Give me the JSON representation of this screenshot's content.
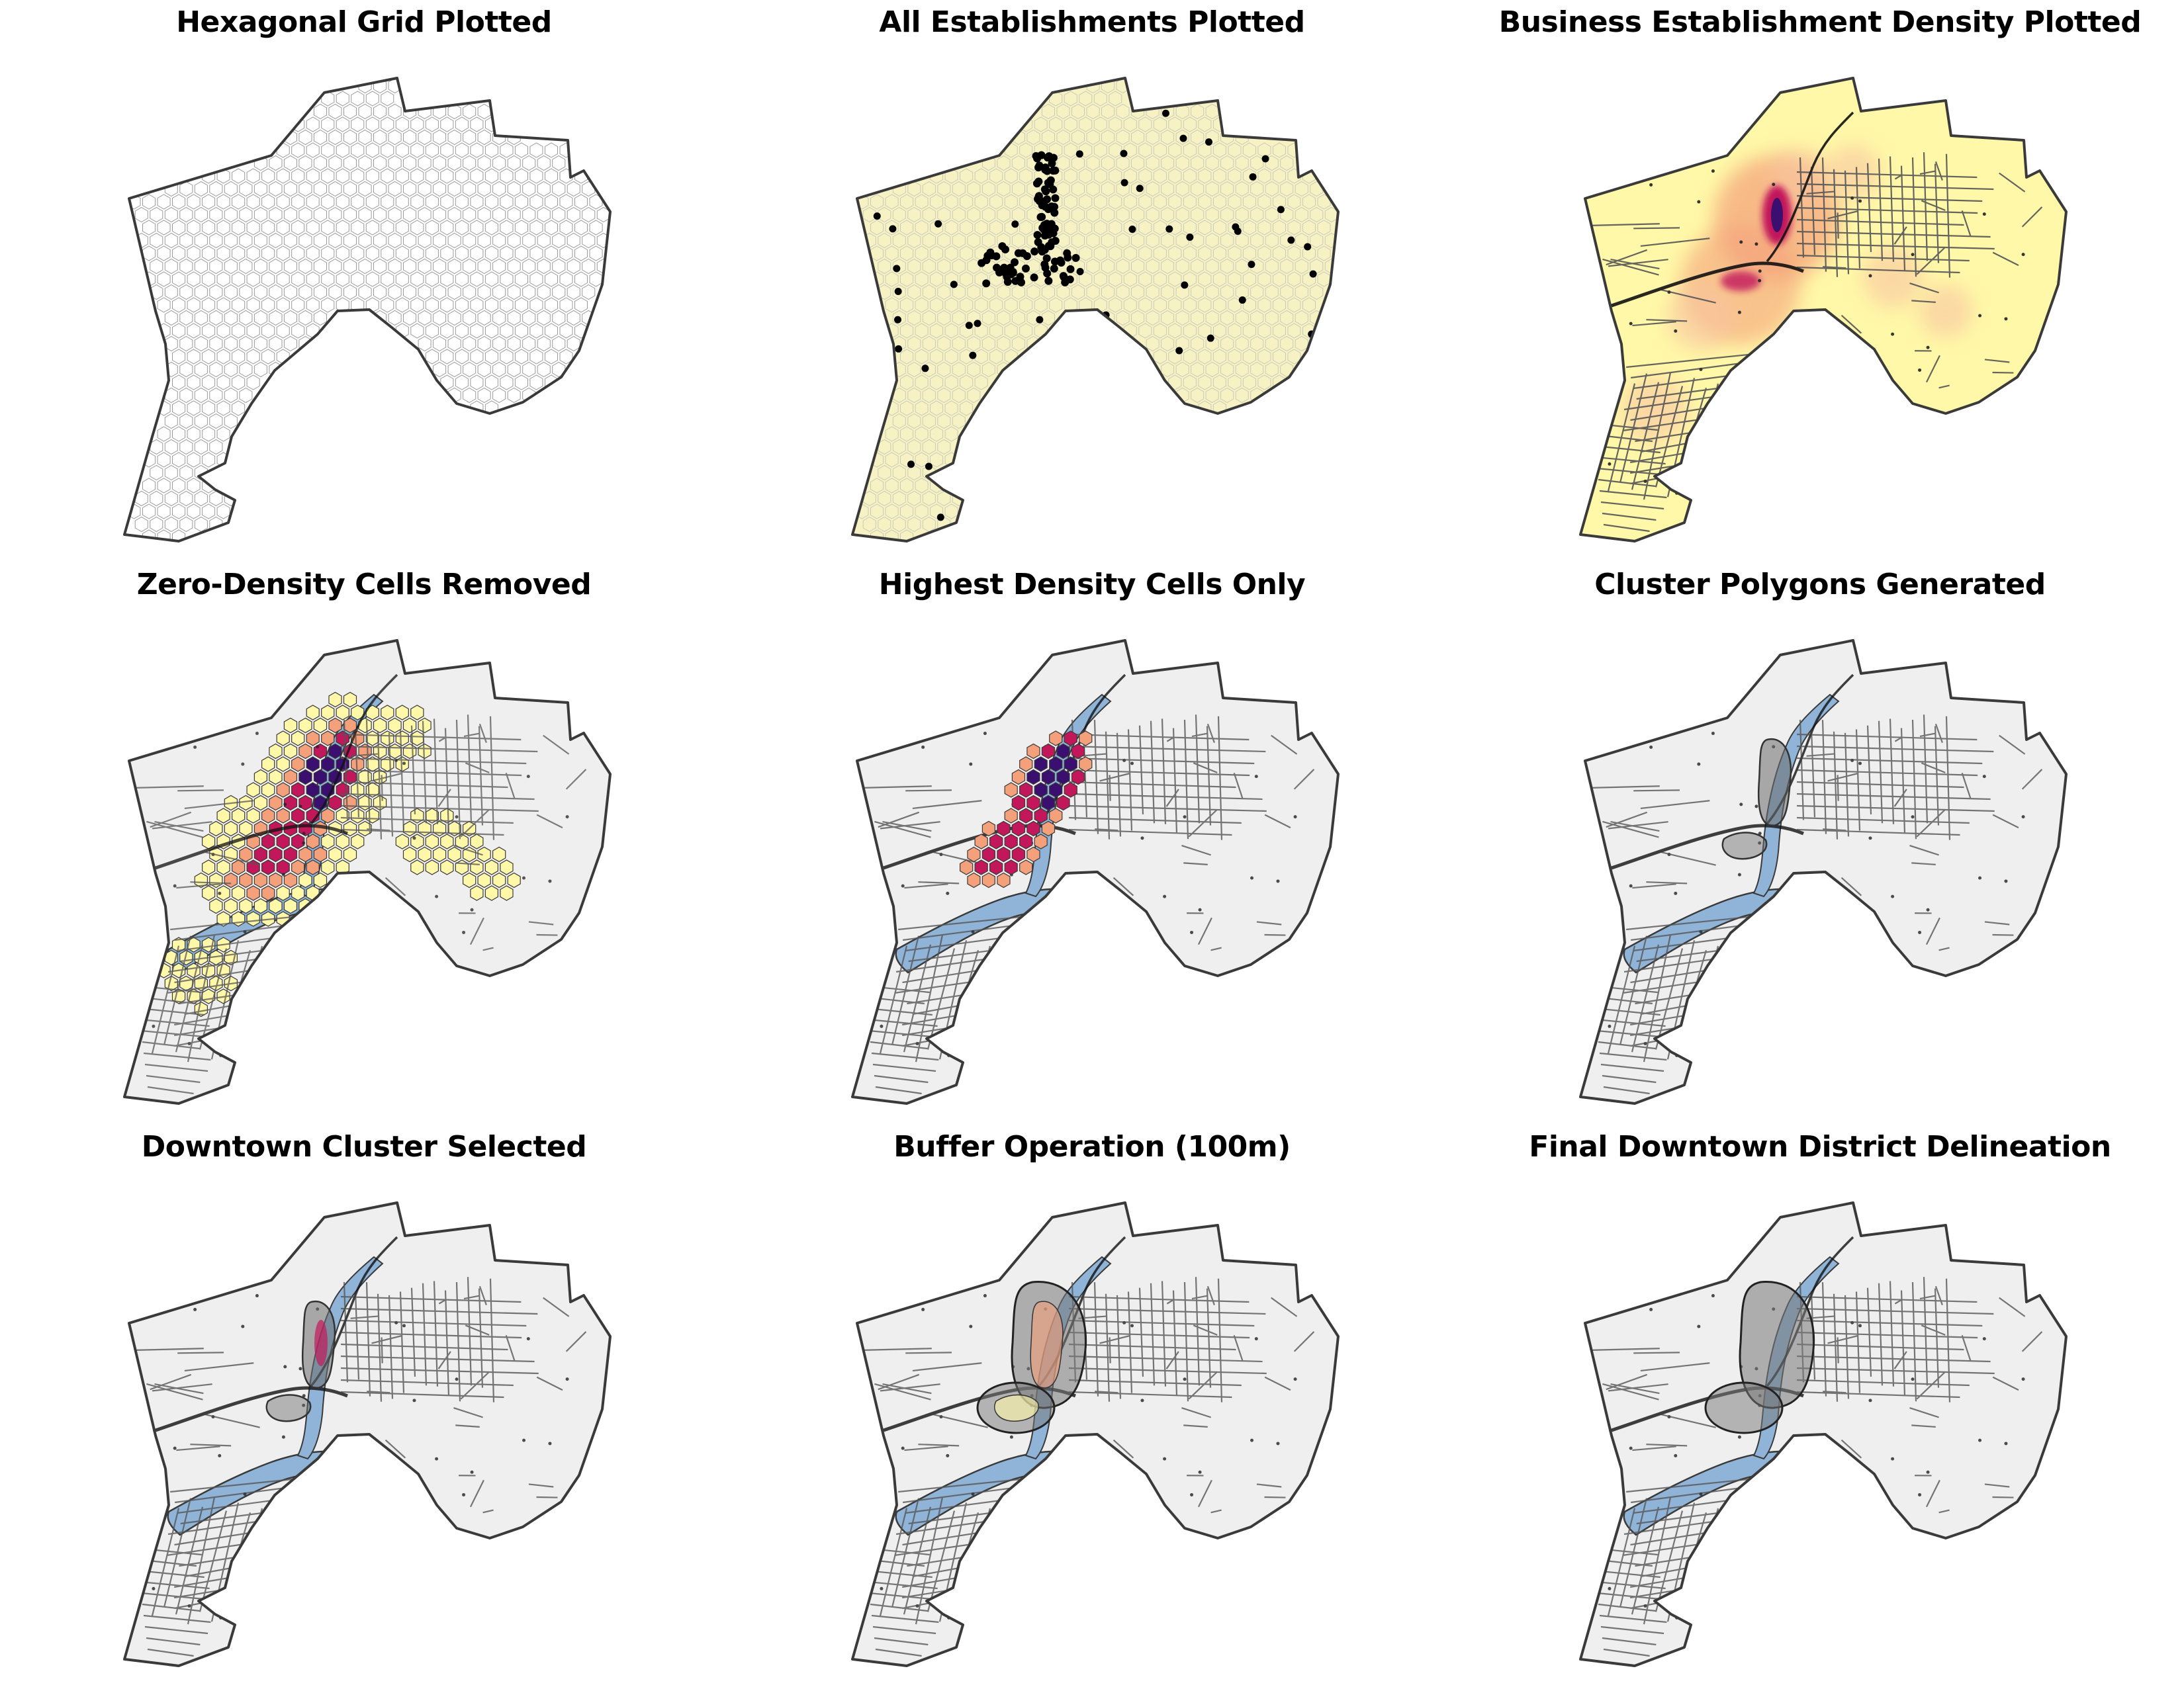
{
  "panels": [
    {
      "title": "Hexagonal Grid Plotted",
      "stage": "hex-grid"
    },
    {
      "title": "All Establishments Plotted",
      "stage": "establishments"
    },
    {
      "title": "Business Establishment Density Plotted",
      "stage": "density"
    },
    {
      "title": "Zero-Density Cells Removed",
      "stage": "zero-removed"
    },
    {
      "title": "Highest Density Cells Only",
      "stage": "highest-density"
    },
    {
      "title": "Cluster Polygons Generated",
      "stage": "cluster-polygons"
    },
    {
      "title": "Downtown Cluster Selected",
      "stage": "cluster-selected"
    },
    {
      "title": "Buffer Operation (100m)",
      "stage": "buffer"
    },
    {
      "title": "Final Downtown District Delineation",
      "stage": "final-district"
    }
  ],
  "colors": {
    "boundary": "#3a3a3a",
    "land": "#efefef",
    "river": "#8fb4d8",
    "street": "#555555",
    "hex_fill": "#f7f2c4",
    "density_low": "#fff8a8",
    "density_mid": "#f4a07a",
    "density_high": "#c2185b",
    "density_peak": "#3b0f70",
    "cluster": "#6b6b6b"
  }
}
